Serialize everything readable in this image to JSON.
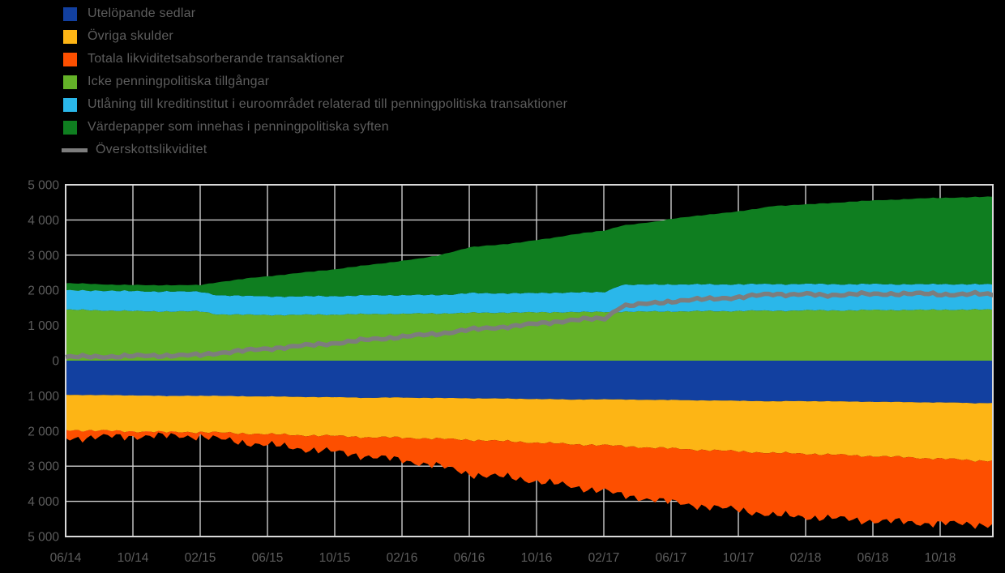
{
  "accent_colors": {
    "background": "#000000",
    "grid": "#cccccc",
    "border": "#d9d9d9",
    "text": "#5d5d5d"
  },
  "legend": {
    "items": [
      {
        "label": "Utelöpande sedlar",
        "color": "#1240a0",
        "swatch": "box"
      },
      {
        "label": "Övriga skulder",
        "color": "#fdb515",
        "swatch": "box"
      },
      {
        "label": "Totala likviditetsabsorberande transaktioner",
        "color": "#fd4f00",
        "swatch": "box"
      },
      {
        "label": "Icke penningpolitiska tillgångar",
        "color": "#64b228",
        "swatch": "box"
      },
      {
        "label": "Utlåning till kreditinstitut i euroområdet relaterad till penningpolitiska transaktioner",
        "color": "#2ab7ea",
        "swatch": "box"
      },
      {
        "label": "Värdepapper som innehas i penningpolitiska syften",
        "color": "#0f7e20",
        "swatch": "box"
      },
      {
        "label": "Överskottslikviditet",
        "color": "#7d7d7d",
        "swatch": "line"
      }
    ]
  },
  "chart_data": {
    "type": "area",
    "stacked": true,
    "grid": true,
    "legend_position": "top-left",
    "ylim": [
      -5000,
      5000
    ],
    "y_ticks": [
      {
        "value": 5000,
        "label": "5 000"
      },
      {
        "value": 4000,
        "label": "4 000"
      },
      {
        "value": 3000,
        "label": "3 000"
      },
      {
        "value": 2000,
        "label": "2 000"
      },
      {
        "value": 1000,
        "label": "1 000"
      },
      {
        "value": 0,
        "label": "0"
      },
      {
        "value": -1000,
        "label": "1 000"
      },
      {
        "value": -2000,
        "label": "2 000"
      },
      {
        "value": -3000,
        "label": "3 000"
      },
      {
        "value": -4000,
        "label": "4 000"
      },
      {
        "value": -5000,
        "label": "5 000"
      }
    ],
    "x_ticks": [
      "06/14",
      "10/14",
      "02/15",
      "06/15",
      "10/15",
      "02/16",
      "06/16",
      "10/16",
      "02/17",
      "06/17",
      "10/17",
      "02/18",
      "06/18",
      "10/18"
    ],
    "months_per_tick": 4,
    "x_count": 56,
    "series_positive": [
      {
        "id": "icke",
        "name": "Icke penningpolitiska tillgångar",
        "color": "#64b228",
        "edge_noise": 25,
        "values": [
          1450,
          1440,
          1430,
          1420,
          1410,
          1400,
          1400,
          1400,
          1400,
          1320,
          1310,
          1300,
          1300,
          1300,
          1300,
          1310,
          1310,
          1320,
          1320,
          1330,
          1330,
          1340,
          1340,
          1350,
          1360,
          1360,
          1370,
          1370,
          1370,
          1380,
          1380,
          1380,
          1390,
          1390,
          1390,
          1400,
          1400,
          1400,
          1410,
          1410,
          1410,
          1420,
          1420,
          1420,
          1430,
          1430,
          1430,
          1430,
          1440,
          1440,
          1440,
          1440,
          1450,
          1450,
          1450,
          1450
        ]
      },
      {
        "id": "utlaning",
        "name": "Utlåning till kreditinstitut i euroområdet relaterad till penningpolitiska transaktioner",
        "color": "#2ab7ea",
        "edge_noise": 25,
        "values": [
          550,
          545,
          560,
          570,
          565,
          560,
          575,
          565,
          555,
          545,
          540,
          535,
          530,
          525,
          520,
          530,
          525,
          520,
          540,
          535,
          530,
          525,
          530,
          535,
          560,
          555,
          550,
          545,
          550,
          555,
          560,
          560,
          560,
          770,
          765,
          765,
          770,
          765,
          760,
          760,
          760,
          755,
          760,
          755,
          750,
          750,
          745,
          740,
          740,
          735,
          730,
          730,
          730,
          725,
          720,
          720
        ]
      },
      {
        "id": "vardepapper",
        "name": "Värdepapper som innehas i penningpolitiska syften",
        "color": "#0f7e20",
        "edge_noise": 15,
        "values": [
          200,
          205,
          185,
          170,
          175,
          185,
          175,
          180,
          195,
          365,
          440,
          515,
          570,
          625,
          680,
          710,
          765,
          820,
          860,
          915,
          980,
          1035,
          1110,
          1215,
          1300,
          1355,
          1390,
          1445,
          1510,
          1565,
          1640,
          1700,
          1750,
          1680,
          1735,
          1785,
          1870,
          1925,
          1970,
          2030,
          2080,
          2135,
          2220,
          2245,
          2260,
          2290,
          2325,
          2360,
          2375,
          2400,
          2425,
          2445,
          2450,
          2465,
          2480,
          2490
        ]
      }
    ],
    "series_negative": [
      {
        "id": "sedlar",
        "name": "Utelöpande sedlar",
        "color": "#1240a0",
        "edge_noise": 10,
        "values": [
          970,
          975,
          980,
          985,
          990,
          995,
          1010,
          1000,
          1000,
          1005,
          1010,
          1015,
          1020,
          1025,
          1030,
          1035,
          1040,
          1045,
          1060,
          1050,
          1050,
          1055,
          1060,
          1065,
          1070,
          1075,
          1080,
          1085,
          1090,
          1095,
          1110,
          1100,
          1100,
          1105,
          1110,
          1115,
          1120,
          1125,
          1130,
          1135,
          1140,
          1145,
          1160,
          1150,
          1150,
          1155,
          1160,
          1165,
          1170,
          1175,
          1180,
          1185,
          1190,
          1195,
          1210,
          1200
        ]
      },
      {
        "id": "ovriga",
        "name": "Övriga skulder",
        "color": "#fdb515",
        "edge_noise": 45,
        "values": [
          1000,
          1005,
          1010,
          1015,
          1020,
          1020,
          1025,
          1025,
          1030,
          1040,
          1050,
          1060,
          1070,
          1080,
          1090,
          1095,
          1100,
          1110,
          1120,
          1130,
          1140,
          1150,
          1160,
          1170,
          1180,
          1195,
          1210,
          1225,
          1240,
          1255,
          1270,
          1285,
          1300,
          1330,
          1345,
          1360,
          1380,
          1395,
          1410,
          1425,
          1440,
          1455,
          1470,
          1480,
          1495,
          1510,
          1520,
          1535,
          1545,
          1560,
          1570,
          1585,
          1600,
          1615,
          1630,
          1640
        ]
      },
      {
        "id": "absorb",
        "name": "Totala likviditetsabsorberande transaktioner",
        "color": "#fd4f00",
        "edge_noise": 150,
        "values": [
          230,
          210,
          185,
          160,
          140,
          130,
          115,
          120,
          120,
          185,
          230,
          275,
          310,
          345,
          380,
          420,
          460,
          505,
          540,
          600,
          650,
          695,
          760,
          865,
          970,
          1000,
          1020,
          1050,
          1100,
          1150,
          1200,
          1255,
          1300,
          1405,
          1435,
          1475,
          1540,
          1570,
          1600,
          1640,
          1670,
          1710,
          1770,
          1790,
          1795,
          1805,
          1820,
          1830,
          1840,
          1840,
          1845,
          1845,
          1840,
          1830,
          1810,
          1820
        ]
      }
    ],
    "line_series": {
      "id": "overskott",
      "name": "Överskottslikviditet",
      "color": "#7d7d7d",
      "width": 5.5,
      "edge_noise": 55,
      "values": [
        100,
        110,
        115,
        120,
        130,
        140,
        150,
        150,
        160,
        220,
        260,
        300,
        340,
        380,
        420,
        460,
        500,
        545,
        600,
        640,
        680,
        720,
        760,
        820,
        880,
        920,
        960,
        1000,
        1050,
        1100,
        1150,
        1180,
        1200,
        1550,
        1590,
        1640,
        1690,
        1720,
        1750,
        1780,
        1800,
        1850,
        1900,
        1880,
        1890,
        1850,
        1880,
        1900,
        1880,
        1900,
        1910,
        1900,
        1880,
        1890,
        1900,
        1870
      ]
    }
  }
}
